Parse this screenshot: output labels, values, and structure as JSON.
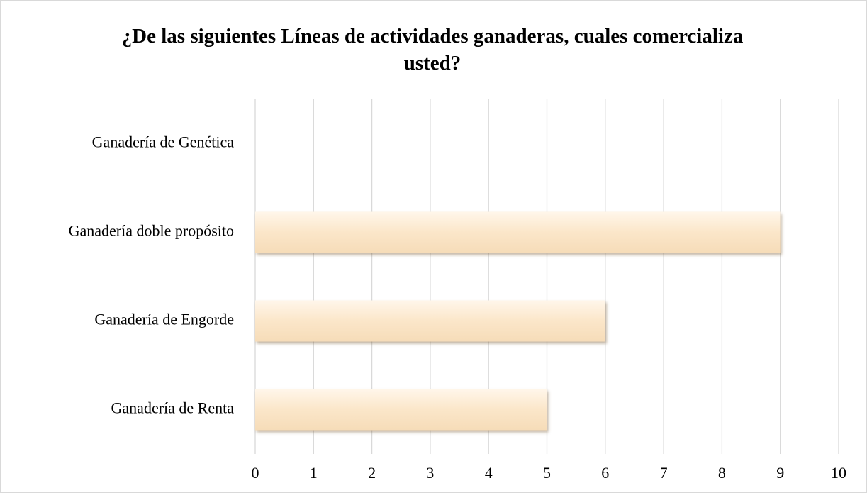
{
  "chart_data": {
    "type": "barh",
    "title": "¿De las siguientes Líneas de actividades ganaderas, cuales comercializa usted?",
    "categories": [
      "Ganadería de Genética",
      "Ganadería doble propósito",
      "Ganadería de Engorde",
      "Ganadería de Renta"
    ],
    "values": [
      0,
      9,
      6,
      5
    ],
    "color": "#fbe6c9",
    "xlim": [
      0,
      10
    ],
    "xticks": [
      0,
      1,
      2,
      3,
      4,
      5,
      6,
      7,
      8,
      9,
      10
    ],
    "grid": true
  }
}
